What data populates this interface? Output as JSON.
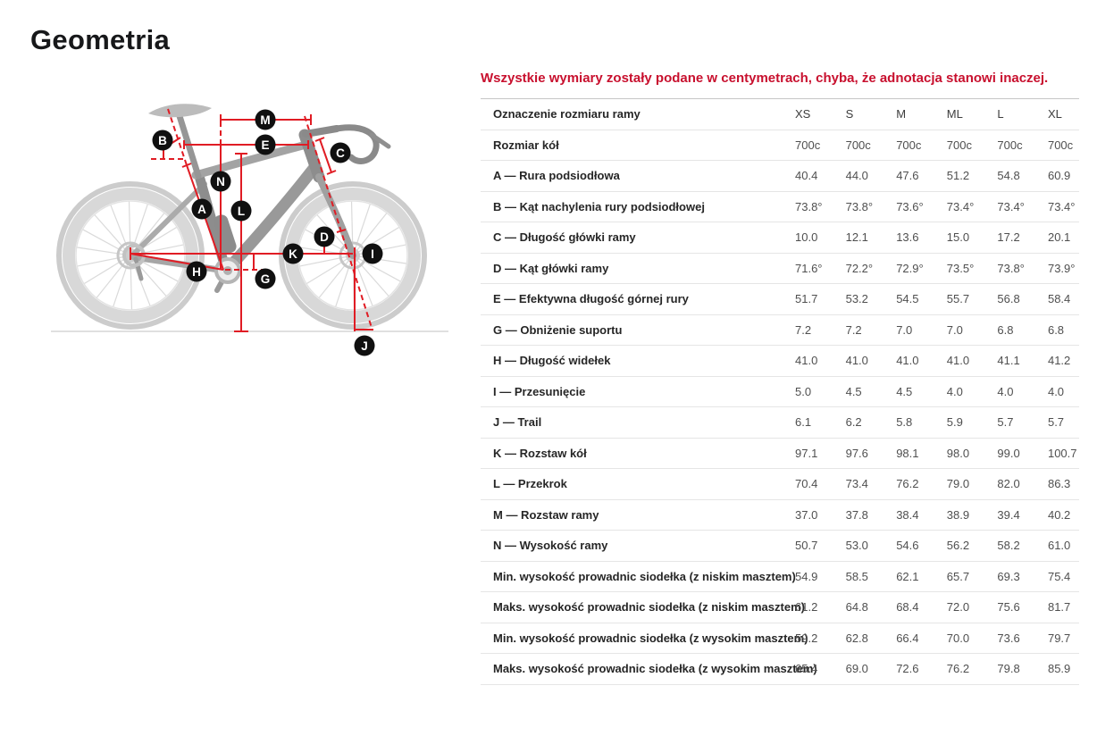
{
  "page": {
    "title": "Geometria"
  },
  "note": "Wszystkie wymiary zostały podane w centymetrach, chyba, że adnotacja stanowi inaczej.",
  "table": {
    "header_label": "Oznaczenie rozmiaru ramy",
    "sizes": [
      "XS",
      "S",
      "M",
      "ML",
      "L",
      "XL"
    ],
    "rows": [
      {
        "label": "Rozmiar kół",
        "values": [
          "700c",
          "700c",
          "700c",
          "700c",
          "700c",
          "700c"
        ]
      },
      {
        "label": "A — Rura podsiodłowa",
        "values": [
          "40.4",
          "44.0",
          "47.6",
          "51.2",
          "54.8",
          "60.9"
        ]
      },
      {
        "label": "B — Kąt nachylenia rury podsiodłowej",
        "values": [
          "73.8°",
          "73.8°",
          "73.6°",
          "73.4°",
          "73.4°",
          "73.4°"
        ]
      },
      {
        "label": "C — Długość główki ramy",
        "values": [
          "10.0",
          "12.1",
          "13.6",
          "15.0",
          "17.2",
          "20.1"
        ]
      },
      {
        "label": "D — Kąt główki ramy",
        "values": [
          "71.6°",
          "72.2°",
          "72.9°",
          "73.5°",
          "73.8°",
          "73.9°"
        ]
      },
      {
        "label": "E — Efektywna długość górnej rury",
        "values": [
          "51.7",
          "53.2",
          "54.5",
          "55.7",
          "56.8",
          "58.4"
        ]
      },
      {
        "label": "G — Obniżenie suportu",
        "values": [
          "7.2",
          "7.2",
          "7.0",
          "7.0",
          "6.8",
          "6.8"
        ]
      },
      {
        "label": "H — Długość widełek",
        "values": [
          "41.0",
          "41.0",
          "41.0",
          "41.0",
          "41.1",
          "41.2"
        ]
      },
      {
        "label": "I — Przesunięcie",
        "values": [
          "5.0",
          "4.5",
          "4.5",
          "4.0",
          "4.0",
          "4.0"
        ]
      },
      {
        "label": "J — Trail",
        "values": [
          "6.1",
          "6.2",
          "5.8",
          "5.9",
          "5.7",
          "5.7"
        ]
      },
      {
        "label": "K — Rozstaw kół",
        "values": [
          "97.1",
          "97.6",
          "98.1",
          "98.0",
          "99.0",
          "100.7"
        ]
      },
      {
        "label": "L — Przekrok",
        "values": [
          "70.4",
          "73.4",
          "76.2",
          "79.0",
          "82.0",
          "86.3"
        ]
      },
      {
        "label": "M — Rozstaw ramy",
        "values": [
          "37.0",
          "37.8",
          "38.4",
          "38.9",
          "39.4",
          "40.2"
        ]
      },
      {
        "label": "N — Wysokość ramy",
        "values": [
          "50.7",
          "53.0",
          "54.6",
          "56.2",
          "58.2",
          "61.0"
        ]
      },
      {
        "label": "Min. wysokość prowadnic siodełka (z niskim masztem)",
        "values": [
          "54.9",
          "58.5",
          "62.1",
          "65.7",
          "69.3",
          "75.4"
        ]
      },
      {
        "label": "Maks. wysokość prowadnic siodełka (z niskim masztem)",
        "values": [
          "61.2",
          "64.8",
          "68.4",
          "72.0",
          "75.6",
          "81.7"
        ]
      },
      {
        "label": "Min. wysokość prowadnic siodełka (z wysokim masztem)",
        "values": [
          "59.2",
          "62.8",
          "66.4",
          "70.0",
          "73.6",
          "79.7"
        ]
      },
      {
        "label": "Maks. wysokość prowadnic siodełka (z wysokim masztem)",
        "values": [
          "65.4",
          "69.0",
          "72.6",
          "76.2",
          "79.8",
          "85.9"
        ]
      }
    ]
  },
  "diagram": {
    "labels": [
      "M",
      "B",
      "E",
      "C",
      "N",
      "A",
      "L",
      "D",
      "K",
      "I",
      "H",
      "G",
      "J"
    ]
  },
  "colors": {
    "accent_red_text": "#c8102e",
    "line_red": "#e01c24",
    "badge_black": "#101010",
    "ground_gray": "#d6d6d6"
  }
}
